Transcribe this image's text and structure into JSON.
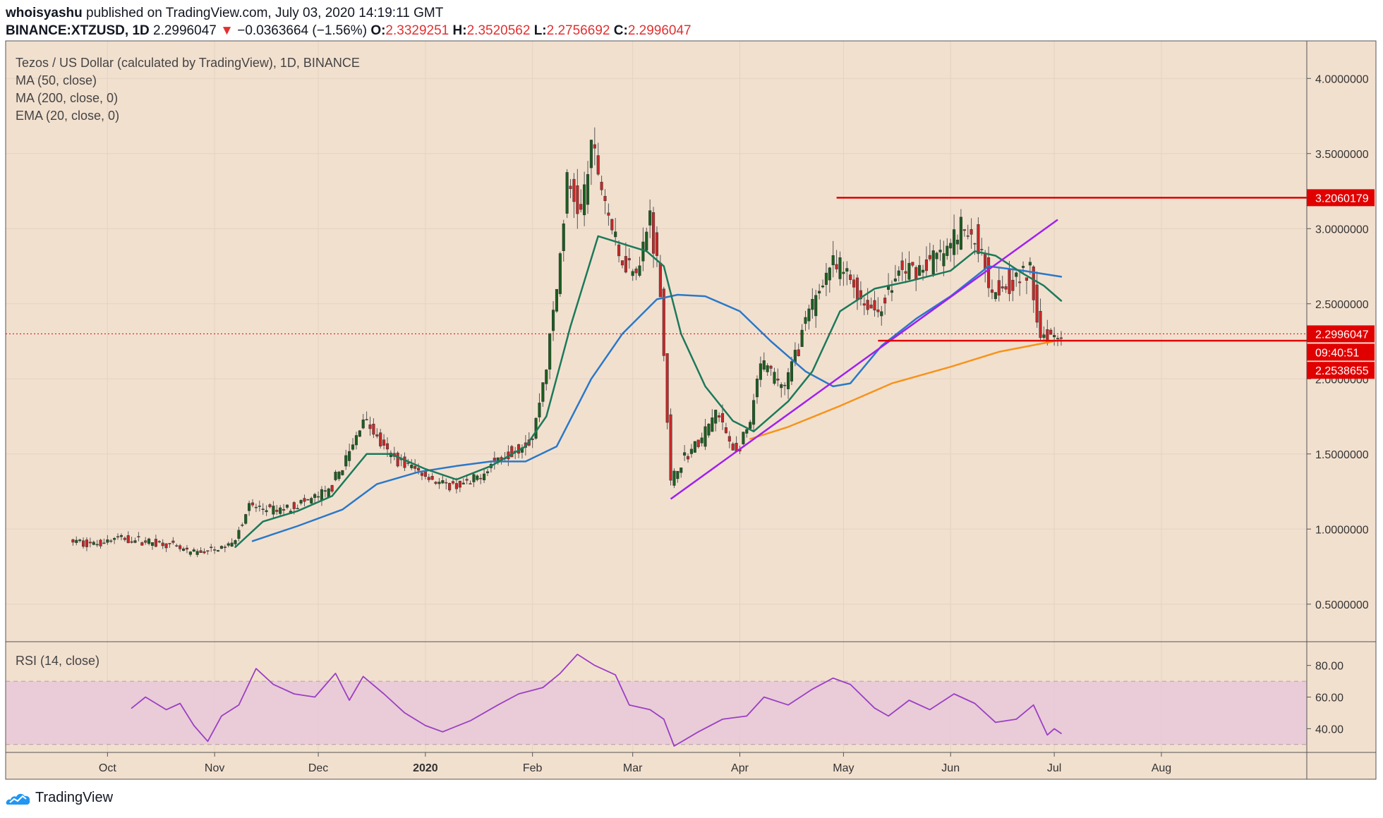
{
  "header": {
    "publisher": "whoisyashu",
    "published_text": "published on TradingView.com, July 03, 2020 14:19:11 GMT",
    "symbol": "BINANCE:XTZUSD, 1D",
    "last": "2.2996047",
    "arrow": "▼",
    "change": "−0.0363664 (−1.56%)",
    "o_label": "O:",
    "o_value": "2.3329251",
    "h_label": "H:",
    "h_value": "2.3520562",
    "l_label": "L:",
    "l_value": "2.2756692",
    "c_label": "C:",
    "c_value": "2.2996047"
  },
  "legend": {
    "title": "Tezos / US Dollar (calculated by TradingView), 1D, BINANCE",
    "ma50": "MA (50, close)",
    "ma200": "MA (200, close, 0)",
    "ema20": "EMA (20, close, 0)"
  },
  "rsi_legend": "RSI (14, close)",
  "footer": {
    "brand": "TradingView"
  },
  "colors": {
    "background": "#f2e0cf",
    "candle_up": "#26a69a",
    "candle_down": "#ef5350",
    "candle_body_up": "#1b5e20",
    "candle_body_down": "#c62828",
    "ma50": "#2979c9",
    "ma200": "#f7931a",
    "ema20": "#1b7a5a",
    "trendline": "#a020f0",
    "levels": "#e00000",
    "rsi_line": "#9c3fc5",
    "rsi_band": "#e8c8d8"
  },
  "chart_data": [
    {
      "type": "candlestick",
      "title": "Tezos / US Dollar (calculated by TradingView), 1D, BINANCE",
      "x_ticks": [
        "Oct",
        "Nov",
        "Dec",
        "2020",
        "Feb",
        "Mar",
        "Apr",
        "May",
        "Jun",
        "Jul",
        "Aug"
      ],
      "y_ticks": [
        "0.5000000",
        "1.0000000",
        "1.5000000",
        "2.0000000",
        "2.5000000",
        "3.0000000",
        "3.5000000",
        "4.0000000"
      ],
      "y_tick_values": [
        0.5,
        1.0,
        1.5,
        2.0,
        2.5,
        3.0,
        3.5,
        4.0
      ],
      "ylim": [
        0.25,
        4.25
      ],
      "price_labels": {
        "resistance": "3.2060179",
        "last_price": "2.2996047",
        "countdown": "09:40:51",
        "support": "2.2538655"
      },
      "levels": [
        {
          "name": "resistance",
          "value": 3.2060179
        },
        {
          "name": "support",
          "value": 2.2538655
        },
        {
          "name": "last_price",
          "value": 2.2996047
        }
      ],
      "trendline": {
        "from": [
          "2020-03-12",
          1.2
        ],
        "to": [
          "2020-07-02",
          3.06
        ]
      },
      "price_path": [
        [
          "2019-09-21",
          0.92
        ],
        [
          "2019-09-28",
          0.9
        ],
        [
          "2019-10-05",
          0.94
        ],
        [
          "2019-10-12",
          0.92
        ],
        [
          "2019-10-19",
          0.9
        ],
        [
          "2019-10-26",
          0.84
        ],
        [
          "2019-11-02",
          0.86
        ],
        [
          "2019-11-07",
          0.9
        ],
        [
          "2019-11-12",
          1.15
        ],
        [
          "2019-11-20",
          1.12
        ],
        [
          "2019-11-28",
          1.18
        ],
        [
          "2019-12-05",
          1.25
        ],
        [
          "2019-12-12",
          1.55
        ],
        [
          "2019-12-15",
          1.75
        ],
        [
          "2019-12-22",
          1.5
        ],
        [
          "2019-12-30",
          1.4
        ],
        [
          "2020-01-08",
          1.28
        ],
        [
          "2020-01-15",
          1.3
        ],
        [
          "2020-01-22",
          1.45
        ],
        [
          "2020-01-29",
          1.55
        ],
        [
          "2020-02-02",
          1.6
        ],
        [
          "2020-02-06",
          2.1
        ],
        [
          "2020-02-09",
          2.6
        ],
        [
          "2020-02-12",
          3.3
        ],
        [
          "2020-02-16",
          3.1
        ],
        [
          "2020-02-19",
          3.55
        ],
        [
          "2020-02-23",
          3.2
        ],
        [
          "2020-02-27",
          2.8
        ],
        [
          "2020-03-04",
          2.75
        ],
        [
          "2020-03-07",
          3.1
        ],
        [
          "2020-03-10",
          2.6
        ],
        [
          "2020-03-13",
          1.3
        ],
        [
          "2020-03-16",
          1.45
        ],
        [
          "2020-03-22",
          1.6
        ],
        [
          "2020-03-26",
          1.78
        ],
        [
          "2020-04-01",
          1.5
        ],
        [
          "2020-04-05",
          1.7
        ],
        [
          "2020-04-08",
          2.1
        ],
        [
          "2020-04-15",
          1.95
        ],
        [
          "2020-04-20",
          2.3
        ],
        [
          "2020-04-24",
          2.55
        ],
        [
          "2020-04-28",
          2.75
        ],
        [
          "2020-05-03",
          2.7
        ],
        [
          "2020-05-08",
          2.5
        ],
        [
          "2020-05-12",
          2.45
        ],
        [
          "2020-05-18",
          2.7
        ],
        [
          "2020-05-25",
          2.75
        ],
        [
          "2020-06-01",
          2.85
        ],
        [
          "2020-06-05",
          3.0
        ],
        [
          "2020-06-10",
          2.9
        ],
        [
          "2020-06-14",
          2.6
        ],
        [
          "2020-06-20",
          2.65
        ],
        [
          "2020-06-25",
          2.7
        ],
        [
          "2020-06-28",
          2.3
        ],
        [
          "2020-07-03",
          2.3
        ]
      ],
      "ema20": [
        [
          "2019-11-07",
          0.88
        ],
        [
          "2019-11-15",
          1.05
        ],
        [
          "2019-11-25",
          1.12
        ],
        [
          "2019-12-05",
          1.22
        ],
        [
          "2019-12-15",
          1.5
        ],
        [
          "2019-12-22",
          1.5
        ],
        [
          "2020-01-01",
          1.4
        ],
        [
          "2020-01-10",
          1.33
        ],
        [
          "2020-01-20",
          1.42
        ],
        [
          "2020-01-30",
          1.55
        ],
        [
          "2020-02-05",
          1.75
        ],
        [
          "2020-02-12",
          2.35
        ],
        [
          "2020-02-20",
          2.95
        ],
        [
          "2020-02-27",
          2.9
        ],
        [
          "2020-03-05",
          2.85
        ],
        [
          "2020-03-10",
          2.75
        ],
        [
          "2020-03-15",
          2.3
        ],
        [
          "2020-03-22",
          1.95
        ],
        [
          "2020-03-30",
          1.72
        ],
        [
          "2020-04-05",
          1.65
        ],
        [
          "2020-04-15",
          1.85
        ],
        [
          "2020-04-22",
          2.05
        ],
        [
          "2020-04-30",
          2.45
        ],
        [
          "2020-05-10",
          2.6
        ],
        [
          "2020-05-20",
          2.65
        ],
        [
          "2020-06-01",
          2.72
        ],
        [
          "2020-06-08",
          2.85
        ],
        [
          "2020-06-14",
          2.82
        ],
        [
          "2020-06-22",
          2.7
        ],
        [
          "2020-06-28",
          2.62
        ],
        [
          "2020-07-03",
          2.52
        ]
      ],
      "ma50": [
        [
          "2019-11-12",
          0.92
        ],
        [
          "2019-11-25",
          1.02
        ],
        [
          "2019-12-08",
          1.13
        ],
        [
          "2019-12-18",
          1.3
        ],
        [
          "2019-12-30",
          1.38
        ],
        [
          "2020-01-10",
          1.42
        ],
        [
          "2020-01-20",
          1.45
        ],
        [
          "2020-01-30",
          1.45
        ],
        [
          "2020-02-08",
          1.55
        ],
        [
          "2020-02-18",
          2.0
        ],
        [
          "2020-02-27",
          2.3
        ],
        [
          "2020-03-08",
          2.53
        ],
        [
          "2020-03-14",
          2.56
        ],
        [
          "2020-03-22",
          2.55
        ],
        [
          "2020-04-01",
          2.45
        ],
        [
          "2020-04-10",
          2.25
        ],
        [
          "2020-04-20",
          2.05
        ],
        [
          "2020-04-28",
          1.95
        ],
        [
          "2020-05-03",
          1.97
        ],
        [
          "2020-05-12",
          2.22
        ],
        [
          "2020-05-22",
          2.4
        ],
        [
          "2020-06-01",
          2.55
        ],
        [
          "2020-06-12",
          2.75
        ],
        [
          "2020-06-22",
          2.72
        ],
        [
          "2020-07-03",
          2.68
        ]
      ],
      "ma200": [
        [
          "2020-04-04",
          1.6
        ],
        [
          "2020-04-15",
          1.68
        ],
        [
          "2020-04-30",
          1.82
        ],
        [
          "2020-05-15",
          1.97
        ],
        [
          "2020-06-01",
          2.08
        ],
        [
          "2020-06-15",
          2.18
        ],
        [
          "2020-07-03",
          2.26
        ]
      ]
    },
    {
      "type": "line",
      "title": "RSI (14, close)",
      "y_ticks": [
        "40.00",
        "60.00",
        "80.00"
      ],
      "y_tick_values": [
        40,
        60,
        80
      ],
      "ylim": [
        25,
        95
      ],
      "band": [
        30,
        70
      ],
      "rsi": [
        [
          "2019-10-08",
          53
        ],
        [
          "2019-10-12",
          60
        ],
        [
          "2019-10-18",
          52
        ],
        [
          "2019-10-22",
          56
        ],
        [
          "2019-10-26",
          42
        ],
        [
          "2019-10-30",
          32
        ],
        [
          "2019-11-03",
          48
        ],
        [
          "2019-11-08",
          55
        ],
        [
          "2019-11-13",
          78
        ],
        [
          "2019-11-18",
          68
        ],
        [
          "2019-11-24",
          62
        ],
        [
          "2019-11-30",
          60
        ],
        [
          "2019-12-06",
          75
        ],
        [
          "2019-12-10",
          58
        ],
        [
          "2019-12-14",
          73
        ],
        [
          "2019-12-20",
          62
        ],
        [
          "2019-12-26",
          50
        ],
        [
          "2020-01-01",
          42
        ],
        [
          "2020-01-06",
          38
        ],
        [
          "2020-01-14",
          45
        ],
        [
          "2020-01-22",
          55
        ],
        [
          "2020-01-28",
          62
        ],
        [
          "2020-02-04",
          66
        ],
        [
          "2020-02-09",
          75
        ],
        [
          "2020-02-14",
          87
        ],
        [
          "2020-02-19",
          80
        ],
        [
          "2020-02-25",
          74
        ],
        [
          "2020-02-29",
          55
        ],
        [
          "2020-03-06",
          52
        ],
        [
          "2020-03-10",
          46
        ],
        [
          "2020-03-13",
          29
        ],
        [
          "2020-03-20",
          38
        ],
        [
          "2020-03-27",
          46
        ],
        [
          "2020-04-03",
          48
        ],
        [
          "2020-04-08",
          60
        ],
        [
          "2020-04-15",
          55
        ],
        [
          "2020-04-22",
          65
        ],
        [
          "2020-04-28",
          72
        ],
        [
          "2020-05-03",
          68
        ],
        [
          "2020-05-10",
          53
        ],
        [
          "2020-05-14",
          48
        ],
        [
          "2020-05-20",
          58
        ],
        [
          "2020-05-26",
          52
        ],
        [
          "2020-06-02",
          62
        ],
        [
          "2020-06-08",
          56
        ],
        [
          "2020-06-14",
          44
        ],
        [
          "2020-06-20",
          46
        ],
        [
          "2020-06-25",
          55
        ],
        [
          "2020-06-29",
          36
        ],
        [
          "2020-07-01",
          40
        ],
        [
          "2020-07-03",
          37
        ]
      ]
    }
  ]
}
